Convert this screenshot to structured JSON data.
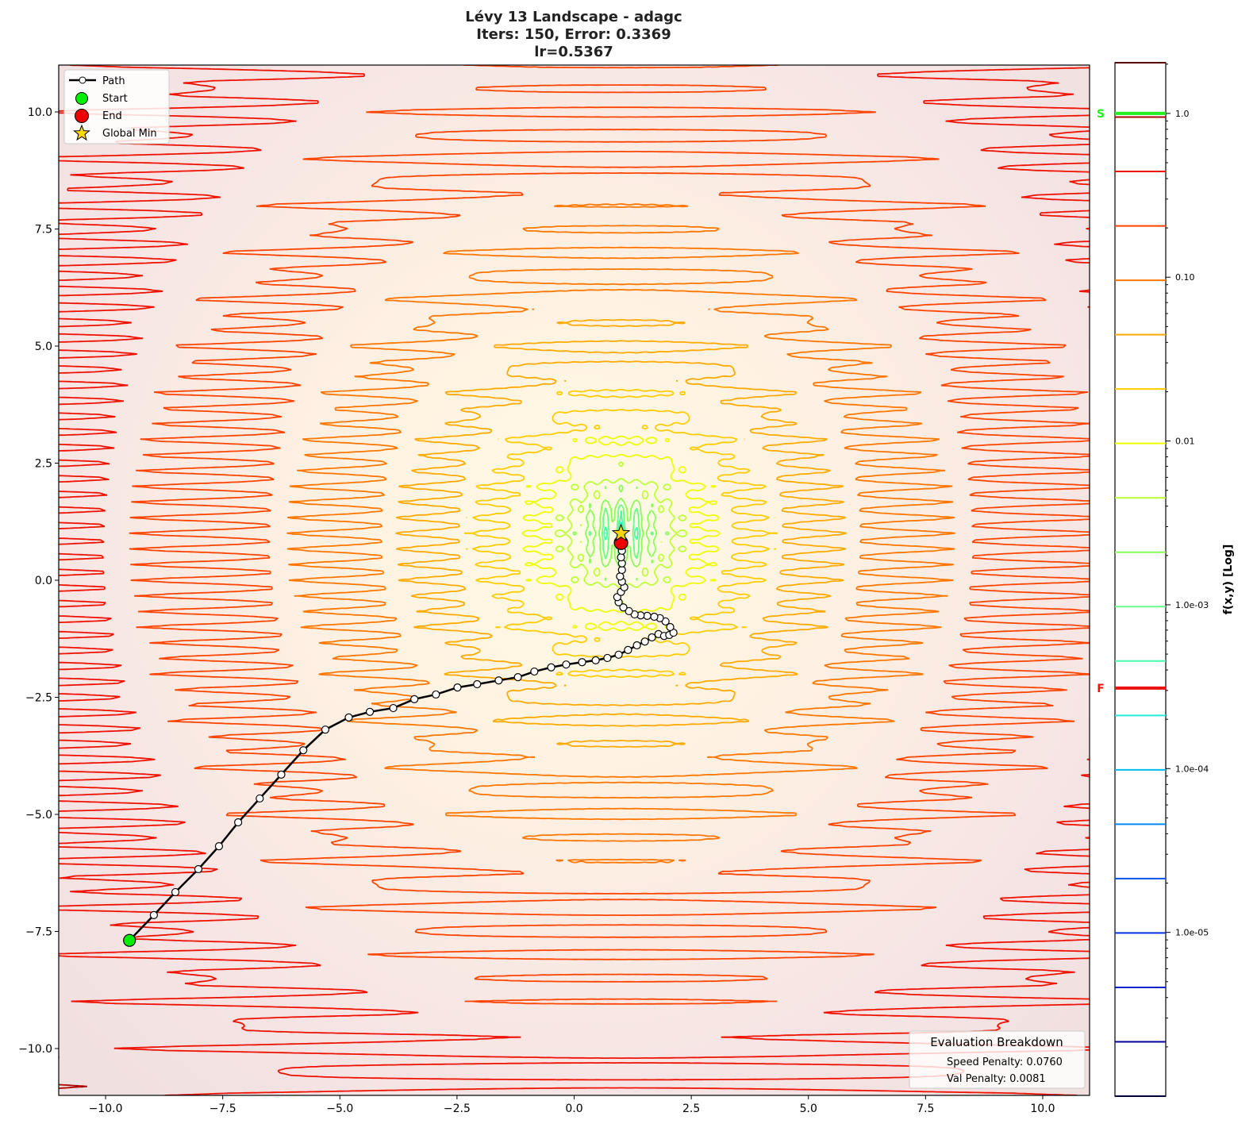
{
  "chart_data": {
    "type": "contour",
    "title": [
      "Lévy 13 Landscape - adagc",
      "Iters: 150, Error: 0.3369",
      "lr=0.5367"
    ],
    "xlabel": "",
    "ylabel": "",
    "xlim": [
      -11,
      11
    ],
    "ylim": [
      -11,
      11
    ],
    "xticks": [
      -10,
      -7.5,
      -5,
      -2.5,
      0,
      2.5,
      5,
      7.5,
      10
    ],
    "xtick_labels": [
      "−10.0",
      "−7.5",
      "−5.0",
      "−2.5",
      "0.0",
      "2.5",
      "5.0",
      "7.5",
      "10.0"
    ],
    "yticks": [
      10,
      7.5,
      5,
      2.5,
      0,
      -2.5,
      -5,
      -7.5,
      -10
    ],
    "ytick_labels": [
      "10.0",
      "7.5",
      "5.0",
      "2.5",
      "0.0",
      "−2.5",
      "−5.0",
      "−7.5",
      "−10.0"
    ],
    "grid": false,
    "function": "Lévy N.13",
    "path": {
      "x": [
        -9.49,
        -8.97,
        -8.51,
        -8.02,
        -7.58,
        -7.17,
        -6.71,
        -6.25,
        -5.78,
        -5.31,
        -4.81,
        -4.36,
        -3.86,
        -3.41,
        -2.95,
        -2.49,
        -2.07,
        -1.61,
        -1.2,
        -0.85,
        -0.49,
        -0.17,
        0.17,
        0.46,
        0.71,
        0.95,
        1.15,
        1.34,
        1.51,
        1.66,
        1.8,
        1.92,
        2.03,
        2.12,
        2.05,
        1.95,
        1.83,
        1.71,
        1.56,
        1.42,
        1.29,
        1.17,
        1.05,
        0.95,
        0.92,
        1.0,
        1.07,
        1.02,
        0.98,
        1.02,
        1.02,
        1.0,
        1.02,
        1.0
      ],
      "y": [
        -7.69,
        -7.15,
        -6.66,
        -6.17,
        -5.68,
        -5.17,
        -4.66,
        -4.15,
        -3.63,
        -3.19,
        -2.93,
        -2.81,
        -2.73,
        -2.54,
        -2.44,
        -2.29,
        -2.22,
        -2.14,
        -2.07,
        -1.95,
        -1.86,
        -1.8,
        -1.75,
        -1.71,
        -1.66,
        -1.59,
        -1.49,
        -1.39,
        -1.31,
        -1.22,
        -1.15,
        -1.19,
        -1.17,
        -1.12,
        -1.0,
        -0.88,
        -0.81,
        -0.78,
        -0.76,
        -0.75,
        -0.73,
        -0.66,
        -0.58,
        -0.47,
        -0.36,
        -0.25,
        -0.15,
        -0.03,
        0.08,
        0.22,
        0.36,
        0.49,
        0.63,
        0.75
      ]
    },
    "start": {
      "x": -9.49,
      "y": -7.69,
      "color": "#00ee00"
    },
    "end": {
      "x": 1.0,
      "y": 0.8,
      "color": "#ee0000"
    },
    "global_min": {
      "x": 1.0,
      "y": 1.0,
      "color": "#ffd700"
    },
    "legend": {
      "placement": "top-left",
      "entries": [
        "Path",
        "Start",
        "End",
        "Global Min"
      ]
    },
    "colorbar": {
      "label": "f(x,y) [Log]",
      "scale": "log",
      "range": [
        1e-06,
        2.04
      ],
      "ticks": [
        1.0,
        0.1,
        0.01,
        0.001,
        0.0001,
        1e-05
      ],
      "tick_labels": [
        "1.0",
        "0.10",
        "0.01",
        "1.0e-03",
        "1.0e-04",
        "1.0e-05"
      ],
      "level_colors": [
        "#000033",
        "#000099",
        "#0022cc",
        "#0033dd",
        "#0055ee",
        "#0088ff",
        "#00bbee",
        "#22eedd",
        "#44ffaa",
        "#66ff88",
        "#88ff55",
        "#bbff33",
        "#eeff00",
        "#ffcc00",
        "#ffaa00",
        "#ff7700",
        "#ff4400",
        "#ee1100",
        "#aa0000",
        "#550000"
      ],
      "markers": [
        {
          "label": "S",
          "value": 1.0,
          "color": "#22ee22"
        },
        {
          "label": "F",
          "value": 0.00031,
          "color": "#ee1111"
        }
      ]
    },
    "evaluation": {
      "title": "Evaluation Breakdown",
      "lines": [
        "Speed Penalty: 0.0760",
        "Val Penalty: 0.0081"
      ]
    }
  }
}
